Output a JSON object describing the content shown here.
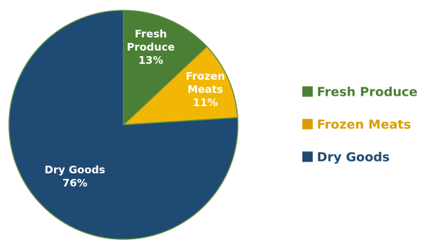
{
  "chart_data": {
    "type": "pie",
    "start_angle_deg": 0,
    "direction": "clockwise",
    "legend_position": "right",
    "slices": [
      {
        "label_lines": [
          "Fresh",
          "Produce"
        ],
        "value_label": "13%",
        "legend": "Fresh Produce",
        "value": 13,
        "color": "#4a7f35",
        "legend_color": "#4a7f35"
      },
      {
        "label_lines": [
          "Frozen",
          "Meats"
        ],
        "value_label": "11%",
        "legend": "Frozen Meats",
        "value": 11,
        "color": "#f2b705",
        "legend_color": "#d89e00"
      },
      {
        "label_lines": [
          "Dry Goods"
        ],
        "value_label": "76%",
        "legend": "Dry Goods",
        "value": 76,
        "color": "#1f4a73",
        "legend_color": "#1f4a73"
      }
    ],
    "outline_color": "#5b8e3c"
  }
}
